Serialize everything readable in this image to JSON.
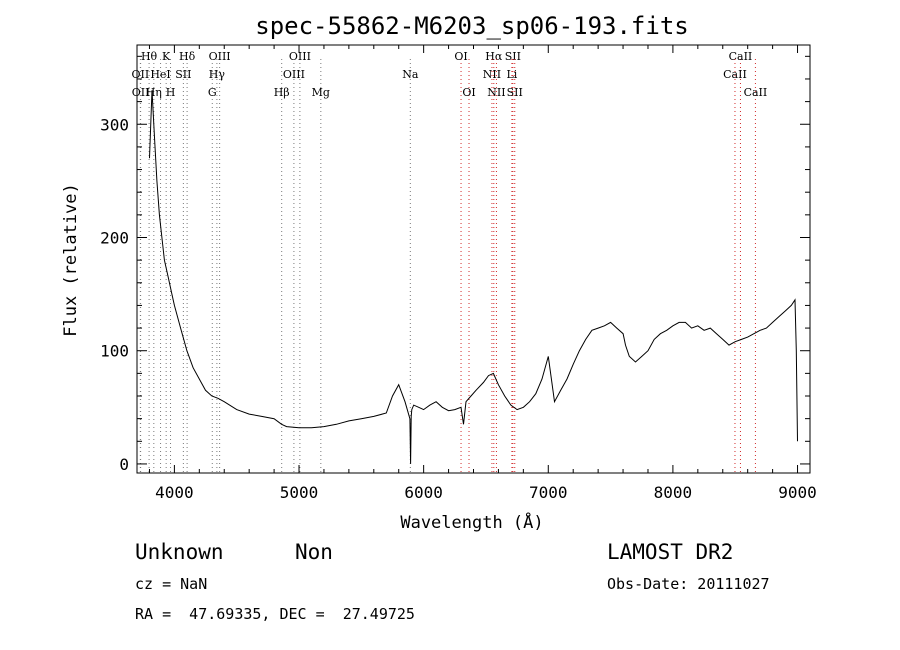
{
  "chart_data": {
    "type": "line",
    "title": "spec-55862-M6203_sp06-193.fits",
    "xlabel": "Wavelength (Å)",
    "ylabel": "Flux (relative)",
    "xlim": [
      3700,
      9100
    ],
    "ylim": [
      -8,
      370
    ],
    "x_ticks": [
      4000,
      5000,
      6000,
      7000,
      8000,
      9000
    ],
    "x_tick_labels": [
      "4000",
      "5000",
      "6000",
      "7000",
      "8000",
      "9000"
    ],
    "y_ticks": [
      0,
      100,
      200,
      300
    ],
    "y_tick_labels": [
      "0",
      "100",
      "200",
      "300"
    ],
    "series": [
      {
        "name": "flux",
        "x": [
          3800,
          3820,
          3840,
          3860,
          3880,
          3900,
          3920,
          3950,
          3980,
          4000,
          4050,
          4100,
          4150,
          4200,
          4250,
          4300,
          4350,
          4400,
          4500,
          4600,
          4700,
          4800,
          4860,
          4900,
          5000,
          5100,
          5200,
          5300,
          5400,
          5500,
          5600,
          5700,
          5750,
          5800,
          5850,
          5890,
          5895,
          5900,
          5905,
          5920,
          5960,
          6000,
          6050,
          6100,
          6150,
          6200,
          6250,
          6300,
          6320,
          6340,
          6380,
          6420,
          6480,
          6520,
          6560,
          6600,
          6650,
          6700,
          6750,
          6800,
          6850,
          6900,
          6950,
          7000,
          7050,
          7100,
          7150,
          7200,
          7250,
          7300,
          7350,
          7400,
          7450,
          7500,
          7550,
          7600,
          7620,
          7650,
          7700,
          7750,
          7800,
          7850,
          7900,
          7950,
          8000,
          8050,
          8100,
          8150,
          8200,
          8250,
          8300,
          8350,
          8400,
          8450,
          8500,
          8550,
          8600,
          8650,
          8700,
          8750,
          8800,
          8850,
          8900,
          8950,
          8980,
          8990,
          9000
        ],
        "y": [
          270,
          330,
          290,
          250,
          220,
          200,
          180,
          165,
          150,
          140,
          120,
          100,
          85,
          75,
          65,
          60,
          58,
          55,
          48,
          44,
          42,
          40,
          35,
          33,
          32,
          32,
          33,
          35,
          38,
          40,
          42,
          45,
          60,
          70,
          55,
          40,
          0,
          42,
          48,
          52,
          50,
          48,
          52,
          55,
          50,
          47,
          48,
          50,
          35,
          55,
          60,
          65,
          72,
          78,
          80,
          70,
          60,
          52,
          48,
          50,
          55,
          62,
          75,
          95,
          55,
          65,
          75,
          88,
          100,
          110,
          118,
          120,
          122,
          125,
          120,
          115,
          105,
          95,
          90,
          95,
          100,
          110,
          115,
          118,
          122,
          125,
          125,
          120,
          122,
          118,
          120,
          115,
          110,
          105,
          108,
          110,
          112,
          115,
          118,
          120,
          125,
          130,
          135,
          140,
          145,
          100,
          20
        ]
      }
    ],
    "line_markers": [
      {
        "label": "Hθ",
        "x": 3797,
        "row": 0
      },
      {
        "label": "OII",
        "x": 3727,
        "row": 1
      },
      {
        "label": "OII",
        "x": 3729,
        "row": 2
      },
      {
        "label": "K",
        "x": 3934,
        "row": 0
      },
      {
        "label": "HeI",
        "x": 3889,
        "row": 1
      },
      {
        "label": "Hη",
        "x": 3835,
        "row": 2
      },
      {
        "label": "SII",
        "x": 4072,
        "row": 1
      },
      {
        "label": "H",
        "x": 3969,
        "row": 2
      },
      {
        "label": "Hδ",
        "x": 4102,
        "row": 0
      },
      {
        "label": "OIII",
        "x": 4363,
        "row": 0
      },
      {
        "label": "Hγ",
        "x": 4341,
        "row": 1
      },
      {
        "label": "G",
        "x": 4304,
        "row": 2
      },
      {
        "label": "Hβ",
        "x": 4861,
        "row": 2
      },
      {
        "label": "OIII",
        "x": 5007,
        "row": 0
      },
      {
        "label": "OIII",
        "x": 4959,
        "row": 1
      },
      {
        "label": "Mg",
        "x": 5175,
        "row": 2
      },
      {
        "label": "Na",
        "x": 5893,
        "row": 1
      },
      {
        "label": "OI",
        "x": 6300,
        "row": 0
      },
      {
        "label": "OI",
        "x": 6364,
        "row": 2
      },
      {
        "label": "Hα",
        "x": 6563,
        "row": 0
      },
      {
        "label": "NII",
        "x": 6548,
        "row": 1
      },
      {
        "label": "NII",
        "x": 6584,
        "row": 2
      },
      {
        "label": "SII",
        "x": 6716,
        "row": 0
      },
      {
        "label": "Li",
        "x": 6708,
        "row": 1
      },
      {
        "label": "SII",
        "x": 6731,
        "row": 2
      },
      {
        "label": "CaII",
        "x": 8542,
        "row": 0
      },
      {
        "label": "CaII",
        "x": 8498,
        "row": 1
      },
      {
        "label": "CaII",
        "x": 8662,
        "row": 2
      }
    ]
  },
  "info": {
    "object_class": "Unknown",
    "subclass": "Non",
    "cz_text": "cz = NaN",
    "coords_text": "RA =  47.69335, DEC =  27.49725",
    "survey": "LAMOST DR2",
    "obs_date_text": "Obs-Date: 20111027"
  },
  "colors": {
    "spectrum": "#000000",
    "marker_line": "#d12a2a",
    "marker_dot": "#7a7a7a",
    "axis": "#000000"
  }
}
